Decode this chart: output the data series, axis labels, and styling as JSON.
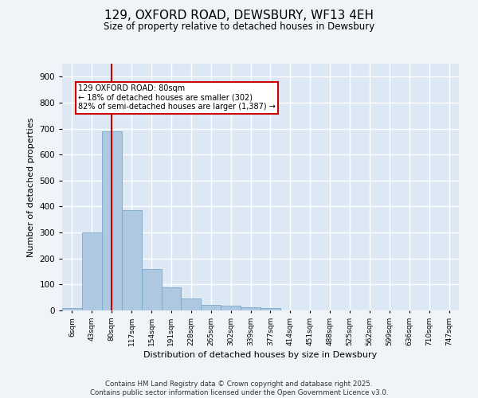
{
  "title": "129, OXFORD ROAD, DEWSBURY, WF13 4EH",
  "subtitle": "Size of property relative to detached houses in Dewsbury",
  "xlabel": "Distribution of detached houses by size in Dewsbury",
  "ylabel": "Number of detached properties",
  "bar_values": [
    10,
    300,
    690,
    385,
    160,
    90,
    45,
    20,
    18,
    13,
    8,
    0,
    0,
    0,
    0,
    0,
    0,
    0,
    0,
    0
  ],
  "bar_labels": [
    "6sqm",
    "43sqm",
    "80sqm",
    "117sqm",
    "154sqm",
    "191sqm",
    "228sqm",
    "265sqm",
    "302sqm",
    "339sqm",
    "377sqm",
    "414sqm",
    "451sqm",
    "488sqm",
    "525sqm",
    "562sqm",
    "599sqm",
    "636sqm",
    "710sqm",
    "747sqm"
  ],
  "bar_color": "#adc8e0",
  "bar_edge_color": "#7aaac8",
  "vline_x": 2,
  "vline_color": "#cc0000",
  "annotation_title": "129 OXFORD ROAD: 80sqm",
  "annotation_line1": "← 18% of detached houses are smaller (302)",
  "annotation_line2": "82% of semi-detached houses are larger (1,387) →",
  "annotation_box_color": "#cc0000",
  "ylim": [
    0,
    950
  ],
  "yticks": [
    0,
    100,
    200,
    300,
    400,
    500,
    600,
    700,
    800,
    900
  ],
  "background_color": "#dce8f4",
  "grid_color": "#ffffff",
  "fig_bg_color": "#f0f4f8",
  "footer_line1": "Contains HM Land Registry data © Crown copyright and database right 2025.",
  "footer_line2": "Contains public sector information licensed under the Open Government Licence v3.0."
}
